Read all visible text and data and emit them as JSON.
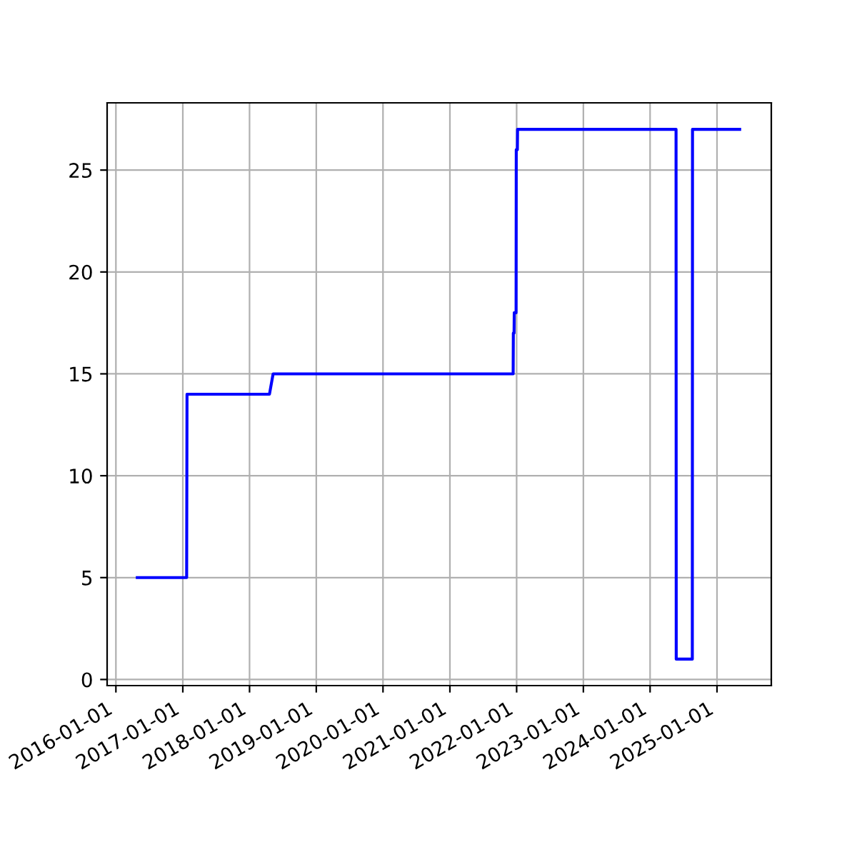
{
  "chart_data": {
    "type": "line",
    "grid": true,
    "line_style": "solid",
    "marker": "none",
    "x": [
      "2016-04-27",
      "2017-01-22",
      "2017-01-24",
      "2018-04-20",
      "2018-05-10",
      "2021-12-13",
      "2021-12-14",
      "2021-12-18",
      "2021-12-19",
      "2021-12-29",
      "2021-12-30",
      "2022-01-05",
      "2022-01-06",
      "2022-01-17",
      "2024-05-22",
      "2024-05-23",
      "2024-08-19",
      "2024-08-20",
      "2025-05-05"
    ],
    "series": [
      {
        "color": "#0000ff",
        "values": [
          5,
          5,
          14,
          14,
          15,
          15,
          17,
          17,
          18,
          18,
          26,
          26,
          27,
          27,
          27,
          1,
          1,
          27,
          27
        ]
      }
    ],
    "xlim": [
      "2015-11-14",
      "2025-10-25"
    ],
    "xticks": [
      "2016-01-01",
      "2017-01-01",
      "2018-01-01",
      "2019-01-01",
      "2020-01-01",
      "2021-01-01",
      "2022-01-01",
      "2023-01-01",
      "2024-01-01",
      "2025-01-01"
    ],
    "ylim": [
      -0.3,
      28.3
    ],
    "yticks": [
      0,
      5,
      10,
      15,
      20,
      25
    ]
  }
}
